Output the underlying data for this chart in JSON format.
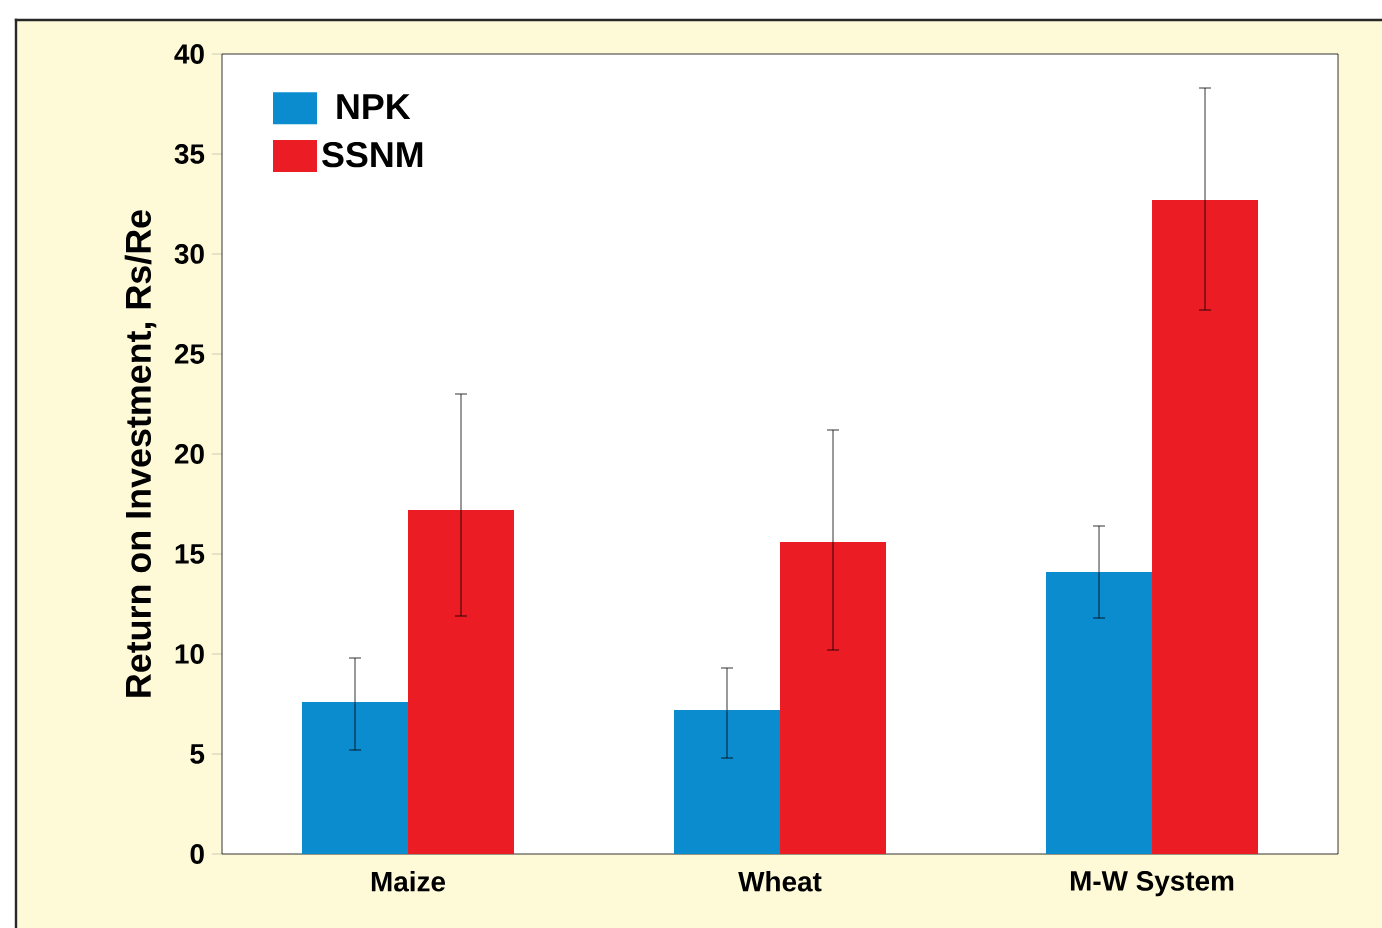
{
  "chart_data": {
    "type": "bar",
    "ylabel": "Return on Investment, Rs/Re",
    "categories": [
      "Maize",
      "Wheat",
      "M-W System"
    ],
    "series": [
      {
        "name": "NPK",
        "color": "#0a8ccf",
        "values": [
          7.6,
          7.2,
          14.1
        ],
        "errors": [
          [
            5.2,
            9.8
          ],
          [
            4.8,
            9.3
          ],
          [
            11.8,
            16.4
          ]
        ]
      },
      {
        "name": "SSNM",
        "color": "#ec1c24",
        "values": [
          17.2,
          15.6,
          32.7
        ],
        "errors": [
          [
            11.9,
            23.0
          ],
          [
            10.2,
            21.2
          ],
          [
            27.2,
            38.3
          ]
        ]
      }
    ],
    "ylim": [
      0,
      40
    ],
    "yticks": [
      0,
      5,
      10,
      15,
      20,
      25,
      30,
      35,
      40
    ],
    "grid": false,
    "legend": "top left"
  }
}
